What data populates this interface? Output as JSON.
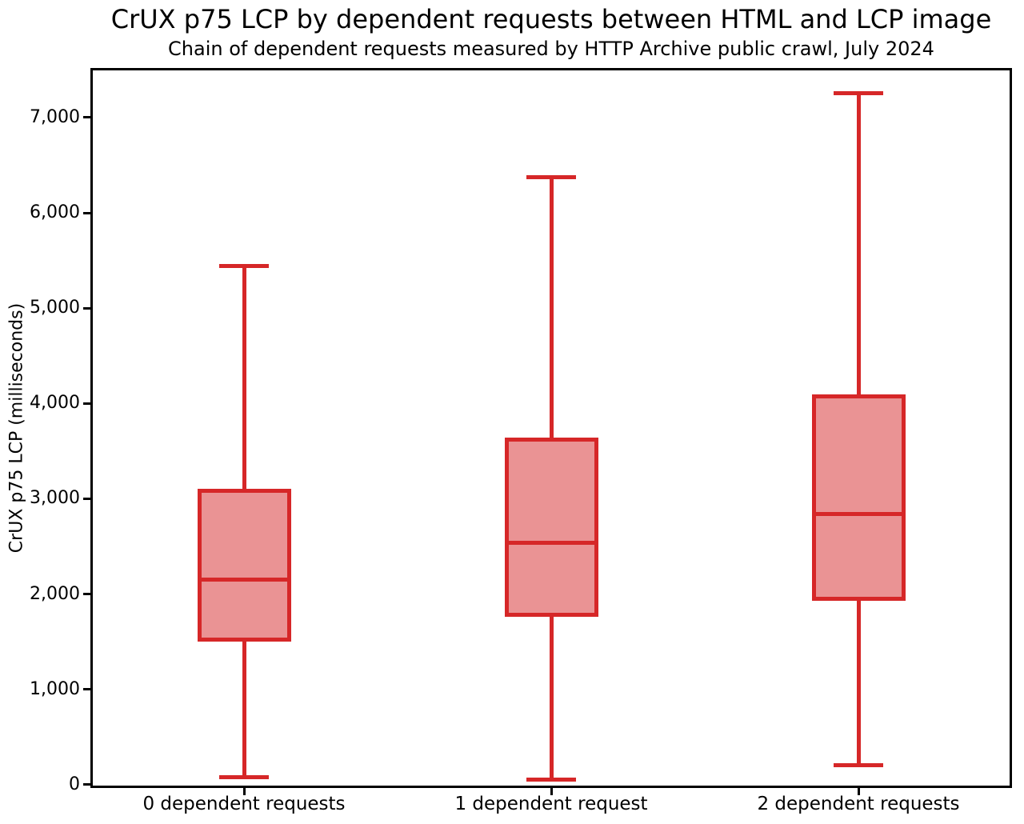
{
  "chart_data": {
    "type": "box",
    "title": "CrUX p75 LCP by dependent requests between HTML and LCP image",
    "subtitle": "Chain of dependent requests measured by HTTP Archive public crawl, July 2024",
    "ylabel": "CrUX p75 LCP (milliseconds)",
    "xlabel": "",
    "categories": [
      "0 dependent requests",
      "1 dependent request",
      "2 dependent requests"
    ],
    "series": [
      {
        "name": "0 dependent requests",
        "whisker_low": 80,
        "q1": 1520,
        "median": 2150,
        "q3": 3085,
        "whisker_high": 5445
      },
      {
        "name": "1 dependent request",
        "whisker_low": 50,
        "q1": 1780,
        "median": 2535,
        "q3": 3620,
        "whisker_high": 6370
      },
      {
        "name": "2 dependent requests",
        "whisker_low": 205,
        "q1": 1950,
        "median": 2840,
        "q3": 4070,
        "whisker_high": 7255
      }
    ],
    "yticks": [
      0,
      1000,
      2000,
      3000,
      4000,
      5000,
      6000,
      7000
    ],
    "ytick_labels": [
      "0",
      "1,000",
      "2,000",
      "3,000",
      "4,000",
      "5,000",
      "6,000",
      "7,000"
    ],
    "ylim": [
      -35,
      7520
    ],
    "grid": false,
    "legend": null,
    "outliers": [],
    "colors": {
      "box_edge": "#d62728",
      "box_fill": "#ea9394",
      "axis": "#000000",
      "text": "#000000",
      "background": "#ffffff"
    }
  }
}
